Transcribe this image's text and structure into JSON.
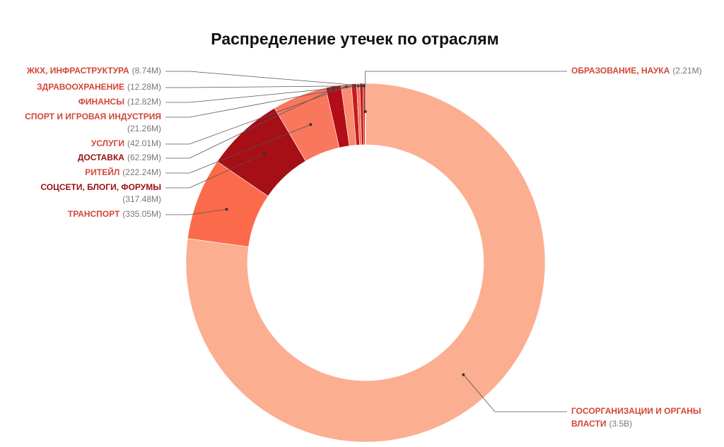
{
  "chart_data": {
    "type": "donut",
    "title": "Распределение утечек по отраслям",
    "categories": [
      "ГОСОРГАНИЗАЦИИ И ОРГАНЫ ВЛАСТИ",
      "ТРАНСПОРТ",
      "СОЦСЕТИ, БЛОГИ, ФОРУМЫ",
      "РИТЕЙЛ",
      "ДОСТАВКА",
      "УСЛУГИ",
      "СПОРТ И ИГРОВАЯ ИНДУСТРИЯ",
      "ФИНАНСЫ",
      "ЗДРАВООХРАНЕНИЕ",
      "ЖКХ, ИНФРАСТРУКТУРА",
      "ОБРАЗОВАНИЕ, НАУКА"
    ],
    "values": [
      3500,
      335.05,
      317.48,
      222.24,
      62.29,
      42.01,
      21.26,
      12.82,
      12.28,
      8.74,
      2.21
    ],
    "value_labels": [
      "(3.5B)",
      "(335.05M)",
      "(317.48M)",
      "(222.24M)",
      "(62.29M)",
      "(42.01M)",
      "(21.26M)",
      "(12.82M)",
      "(12.28M)",
      "(8.74M)",
      "(2.21M)"
    ],
    "colors": [
      "#fcae91",
      "#fb6a4a",
      "#a50f15",
      "#f9775d",
      "#b30d17",
      "#f98b70",
      "#c81a1e",
      "#f6765c",
      "#be1218",
      "#de2d26",
      "#fc9272"
    ]
  }
}
